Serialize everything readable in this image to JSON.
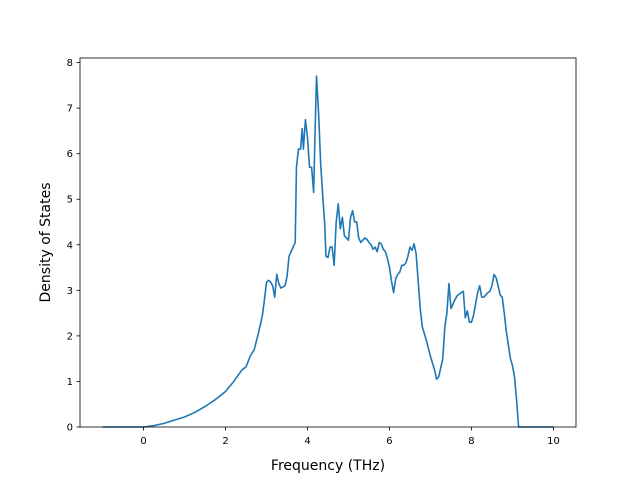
{
  "chart_data": {
    "type": "line",
    "title": "",
    "xlabel": "Frequency (THz)",
    "ylabel": "Density of States",
    "xlim": [
      -1.55,
      10.55
    ],
    "ylim": [
      0,
      8.1
    ],
    "xticks": [
      0,
      2,
      4,
      6,
      8,
      10
    ],
    "yticks": [
      0,
      1,
      2,
      3,
      4,
      5,
      6,
      7,
      8
    ],
    "grid": false,
    "legend": "none",
    "series": [
      {
        "name": "",
        "color": "#1f77b4",
        "points": [
          [
            -1.0,
            0.0
          ],
          [
            -0.5,
            0.0
          ],
          [
            0.0,
            0.0
          ],
          [
            0.25,
            0.03
          ],
          [
            0.5,
            0.08
          ],
          [
            0.75,
            0.15
          ],
          [
            1.0,
            0.22
          ],
          [
            1.25,
            0.32
          ],
          [
            1.5,
            0.45
          ],
          [
            1.75,
            0.6
          ],
          [
            2.0,
            0.78
          ],
          [
            2.2,
            1.0
          ],
          [
            2.4,
            1.25
          ],
          [
            2.5,
            1.32
          ],
          [
            2.6,
            1.55
          ],
          [
            2.7,
            1.7
          ],
          [
            2.8,
            2.05
          ],
          [
            2.9,
            2.45
          ],
          [
            2.95,
            2.8
          ],
          [
            3.0,
            3.18
          ],
          [
            3.05,
            3.22
          ],
          [
            3.1,
            3.18
          ],
          [
            3.15,
            3.1
          ],
          [
            3.2,
            2.85
          ],
          [
            3.25,
            3.35
          ],
          [
            3.3,
            3.15
          ],
          [
            3.35,
            3.05
          ],
          [
            3.45,
            3.1
          ],
          [
            3.5,
            3.3
          ],
          [
            3.55,
            3.75
          ],
          [
            3.6,
            3.85
          ],
          [
            3.65,
            3.95
          ],
          [
            3.7,
            4.05
          ],
          [
            3.73,
            5.7
          ],
          [
            3.78,
            6.1
          ],
          [
            3.83,
            6.1
          ],
          [
            3.87,
            6.55
          ],
          [
            3.9,
            6.1
          ],
          [
            3.95,
            6.75
          ],
          [
            4.0,
            6.35
          ],
          [
            4.05,
            5.7
          ],
          [
            4.1,
            5.7
          ],
          [
            4.15,
            5.15
          ],
          [
            4.18,
            6.3
          ],
          [
            4.22,
            7.7
          ],
          [
            4.27,
            6.9
          ],
          [
            4.32,
            5.8
          ],
          [
            4.37,
            5.1
          ],
          [
            4.42,
            4.45
          ],
          [
            4.45,
            3.75
          ],
          [
            4.5,
            3.72
          ],
          [
            4.55,
            3.95
          ],
          [
            4.6,
            3.95
          ],
          [
            4.65,
            3.55
          ],
          [
            4.7,
            4.5
          ],
          [
            4.75,
            4.9
          ],
          [
            4.8,
            4.35
          ],
          [
            4.85,
            4.6
          ],
          [
            4.9,
            4.2
          ],
          [
            4.95,
            4.15
          ],
          [
            5.0,
            4.1
          ],
          [
            5.05,
            4.6
          ],
          [
            5.1,
            4.75
          ],
          [
            5.15,
            4.5
          ],
          [
            5.2,
            4.5
          ],
          [
            5.25,
            4.15
          ],
          [
            5.3,
            4.05
          ],
          [
            5.35,
            4.1
          ],
          [
            5.4,
            4.15
          ],
          [
            5.45,
            4.12
          ],
          [
            5.5,
            4.05
          ],
          [
            5.55,
            4.0
          ],
          [
            5.6,
            3.9
          ],
          [
            5.65,
            3.95
          ],
          [
            5.7,
            3.85
          ],
          [
            5.75,
            4.05
          ],
          [
            5.8,
            4.02
          ],
          [
            5.85,
            3.9
          ],
          [
            5.9,
            3.85
          ],
          [
            5.95,
            3.7
          ],
          [
            6.0,
            3.5
          ],
          [
            6.05,
            3.2
          ],
          [
            6.1,
            2.95
          ],
          [
            6.15,
            3.25
          ],
          [
            6.2,
            3.35
          ],
          [
            6.25,
            3.4
          ],
          [
            6.3,
            3.55
          ],
          [
            6.35,
            3.55
          ],
          [
            6.4,
            3.6
          ],
          [
            6.45,
            3.75
          ],
          [
            6.5,
            3.95
          ],
          [
            6.55,
            3.88
          ],
          [
            6.6,
            4.02
          ],
          [
            6.65,
            3.8
          ],
          [
            6.7,
            3.2
          ],
          [
            6.75,
            2.6
          ],
          [
            6.8,
            2.2
          ],
          [
            6.9,
            1.9
          ],
          [
            7.0,
            1.55
          ],
          [
            7.1,
            1.25
          ],
          [
            7.15,
            1.05
          ],
          [
            7.2,
            1.1
          ],
          [
            7.3,
            1.5
          ],
          [
            7.35,
            2.2
          ],
          [
            7.4,
            2.5
          ],
          [
            7.45,
            3.15
          ],
          [
            7.5,
            2.6
          ],
          [
            7.55,
            2.7
          ],
          [
            7.6,
            2.8
          ],
          [
            7.65,
            2.88
          ],
          [
            7.7,
            2.92
          ],
          [
            7.75,
            2.95
          ],
          [
            7.8,
            2.98
          ],
          [
            7.85,
            2.4
          ],
          [
            7.9,
            2.55
          ],
          [
            7.95,
            2.3
          ],
          [
            8.0,
            2.3
          ],
          [
            8.05,
            2.45
          ],
          [
            8.1,
            2.7
          ],
          [
            8.15,
            2.95
          ],
          [
            8.2,
            3.1
          ],
          [
            8.25,
            2.85
          ],
          [
            8.3,
            2.85
          ],
          [
            8.4,
            2.95
          ],
          [
            8.45,
            2.98
          ],
          [
            8.5,
            3.1
          ],
          [
            8.55,
            3.35
          ],
          [
            8.6,
            3.28
          ],
          [
            8.65,
            3.1
          ],
          [
            8.7,
            2.9
          ],
          [
            8.75,
            2.85
          ],
          [
            8.8,
            2.5
          ],
          [
            8.85,
            2.1
          ],
          [
            8.9,
            1.8
          ],
          [
            8.95,
            1.5
          ],
          [
            9.0,
            1.35
          ],
          [
            9.05,
            1.1
          ],
          [
            9.1,
            0.6
          ],
          [
            9.15,
            0.0
          ],
          [
            9.5,
            0.0
          ],
          [
            10.0,
            0.0
          ]
        ]
      }
    ]
  }
}
